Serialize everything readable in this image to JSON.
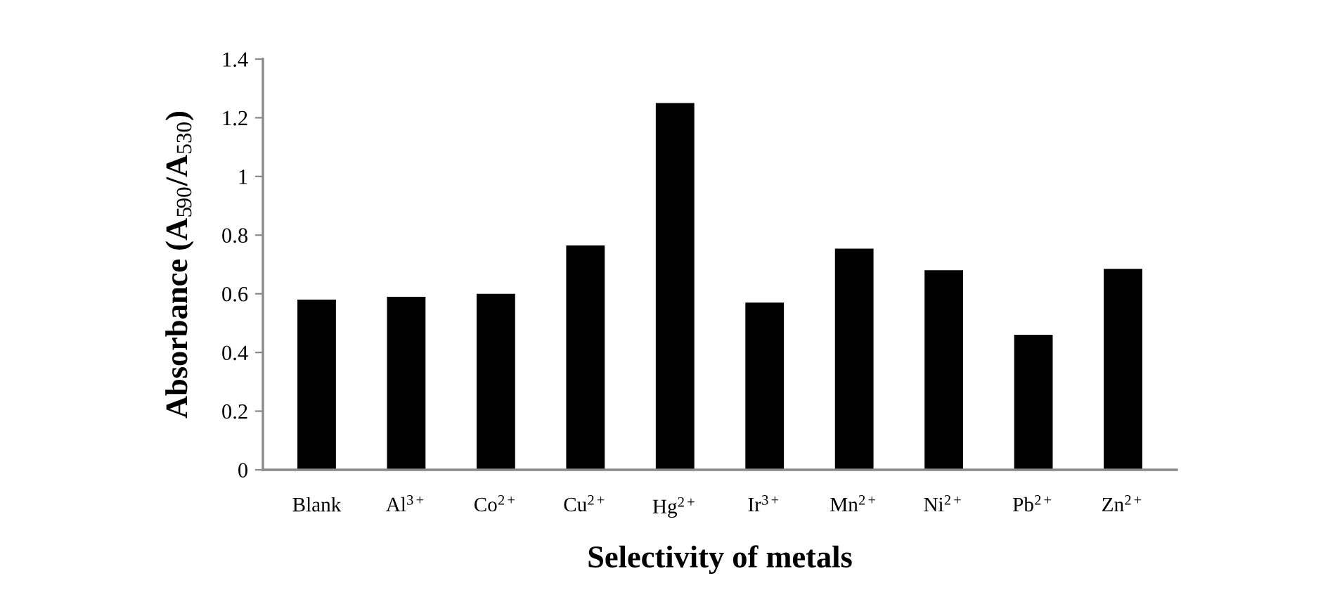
{
  "chart_data": {
    "type": "bar",
    "xlabel": "Selectivity of metals",
    "ylabel": "Absorbance (A$_{590}$/A$_{530}$)",
    "categories": [
      "Blank",
      "Al$^{3+}$",
      "Co$^{2+}$",
      "Cu$^{2+}$",
      "Hg$^{2+}$",
      "Ir$^{3+}$",
      "Mn$^{2+}$",
      "Ni$^{2+}$",
      "Pb$^{2+}$",
      "Zn$^{2+}$"
    ],
    "values": [
      0.58,
      0.59,
      0.6,
      0.765,
      1.25,
      0.57,
      0.754,
      0.68,
      0.46,
      0.685
    ],
    "color": "#000000",
    "ylim": [
      0,
      1.4
    ],
    "yticks": [
      0,
      0.2,
      0.4,
      0.6,
      0.8,
      1,
      1.2,
      1.4
    ],
    "grid": false
  }
}
